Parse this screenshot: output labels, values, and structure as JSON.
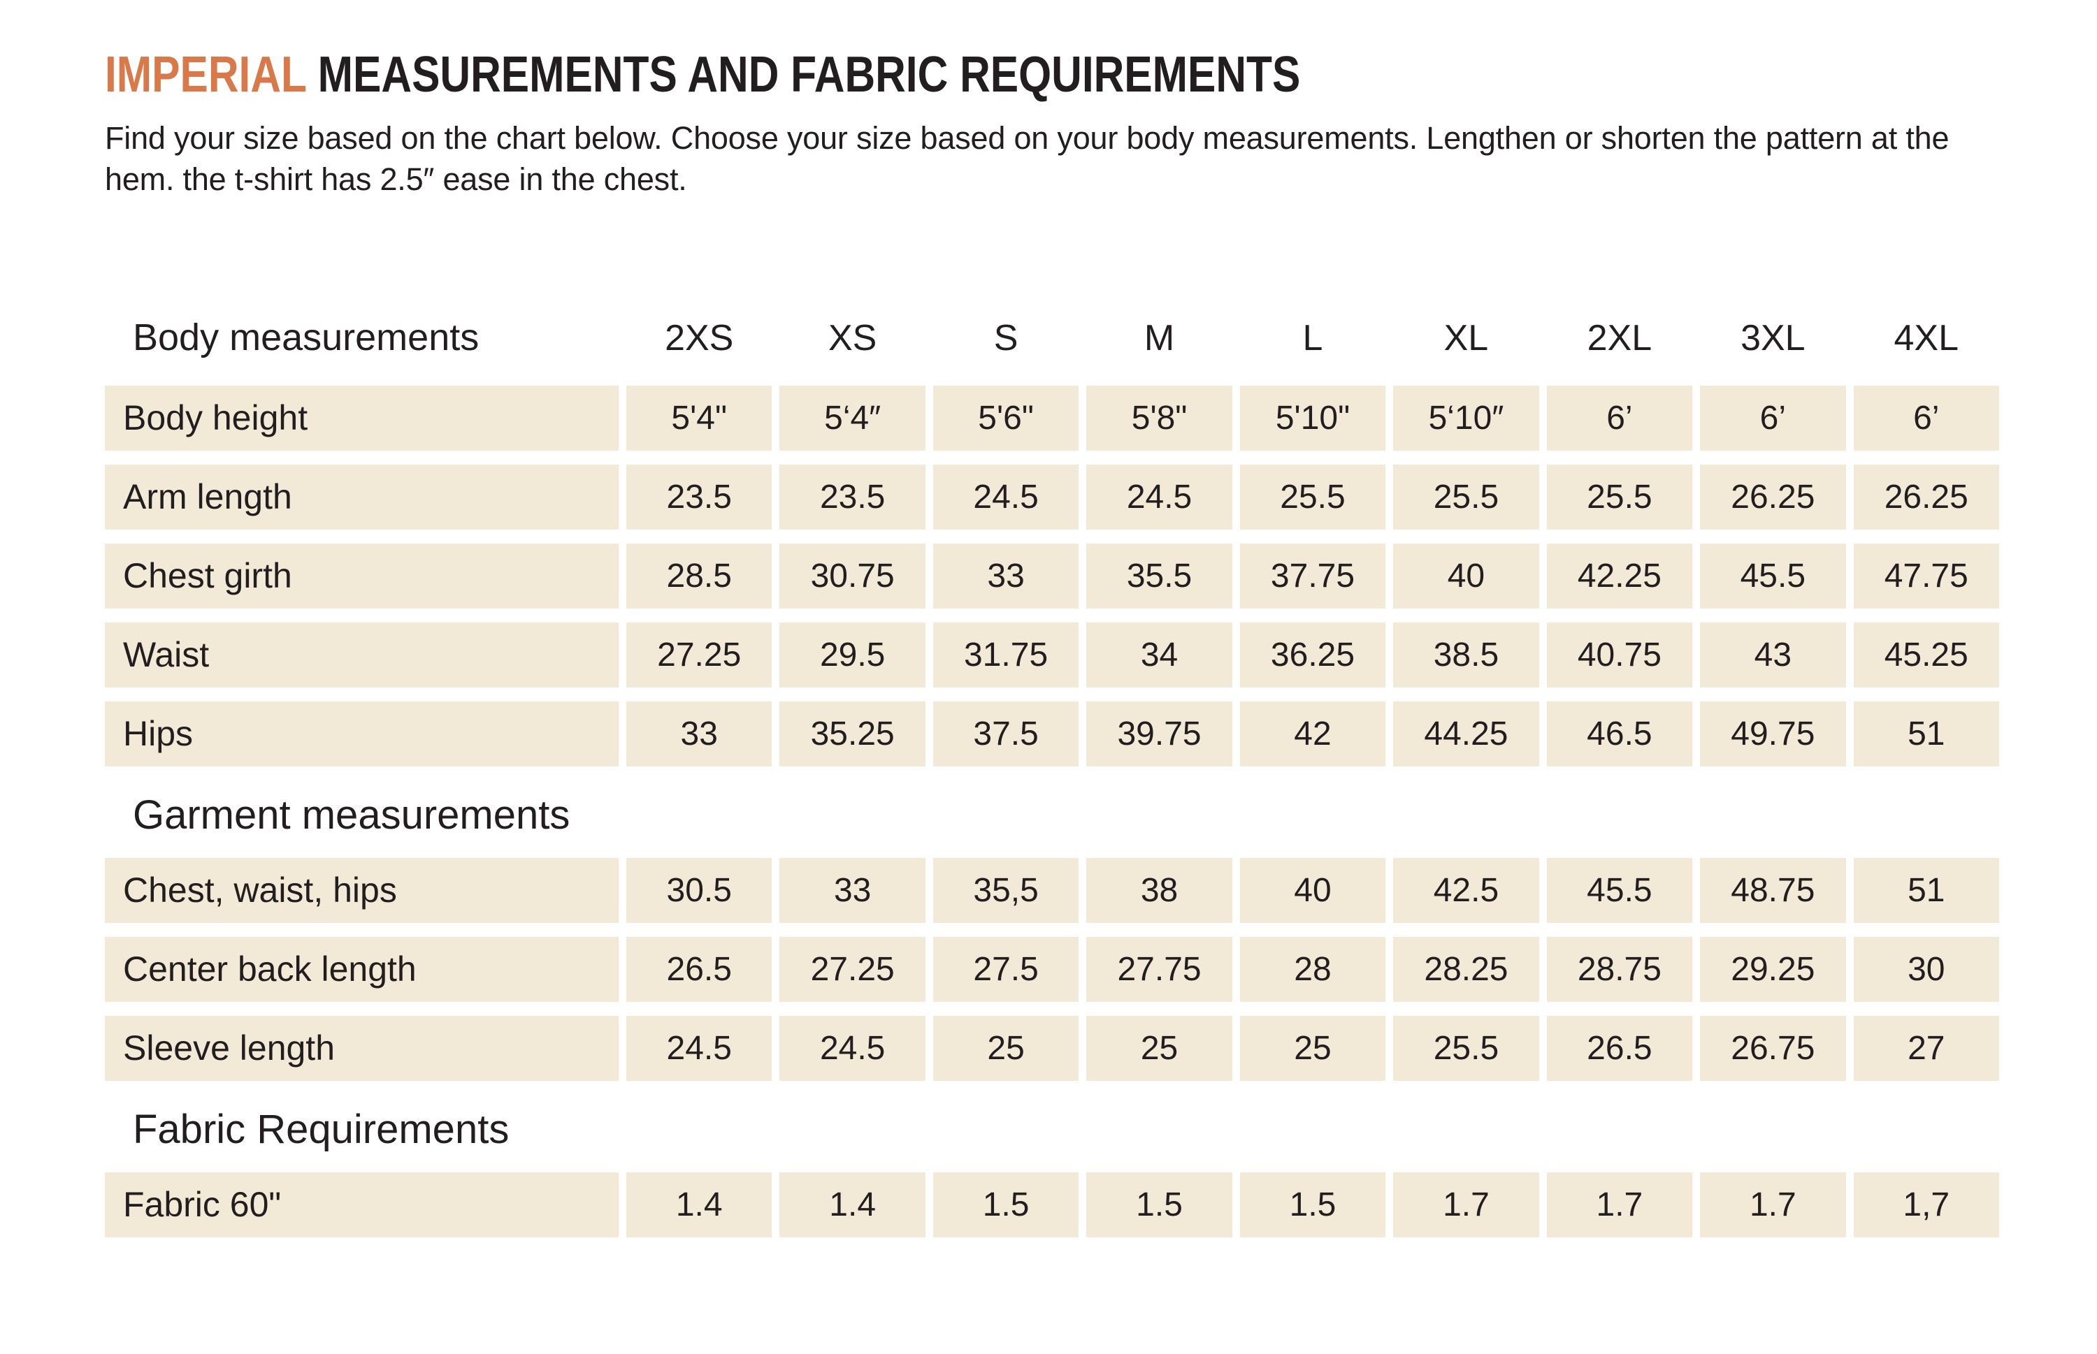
{
  "page": {
    "title": {
      "highlight": "IMPERIAL",
      "rest": " MEASUREMENTS AND FABRIC REQUIREMENTS"
    },
    "subtitle": "Find your size based on the chart below. Choose your size based on your body measurements. Lengthen or shorten the pattern at the hem. the t-shirt has 2.5″ ease in the chest."
  },
  "colors": {
    "accent_orange": "#d9794a",
    "cell_beige": "#f2e9d6",
    "text_dark": "#221e1f"
  },
  "table": {
    "sizes": [
      "2XS",
      "XS",
      "S",
      "M",
      "L",
      "XL",
      "2XL",
      "3XL",
      "4XL"
    ],
    "sections": [
      {
        "heading": "Body measurements",
        "rows": [
          {
            "label": "Body height",
            "values": [
              "5'4\"",
              "5‘4″",
              "5'6\"",
              "5'8\"",
              "5'10\"",
              "5‘10″",
              "6’",
              "6’",
              "6’"
            ]
          },
          {
            "label": "Arm length",
            "values": [
              "23.5",
              "23.5",
              "24.5",
              "24.5",
              "25.5",
              "25.5",
              "25.5",
              "26.25",
              "26.25"
            ]
          },
          {
            "label": "Chest girth",
            "values": [
              "28.5",
              "30.75",
              "33",
              "35.5",
              "37.75",
              "40",
              "42.25",
              "45.5",
              "47.75"
            ]
          },
          {
            "label": "Waist",
            "values": [
              "27.25",
              "29.5",
              "31.75",
              "34",
              "36.25",
              "38.5",
              "40.75",
              "43",
              "45.25"
            ]
          },
          {
            "label": "Hips",
            "values": [
              "33",
              "35.25",
              "37.5",
              "39.75",
              "42",
              "44.25",
              "46.5",
              "49.75",
              "51"
            ]
          }
        ]
      },
      {
        "heading": "Garment measurements",
        "rows": [
          {
            "label": "Chest, waist, hips",
            "values": [
              "30.5",
              "33",
              "35,5",
              "38",
              "40",
              "42.5",
              "45.5",
              "48.75",
              "51"
            ]
          },
          {
            "label": "Center back length",
            "values": [
              "26.5",
              "27.25",
              "27.5",
              "27.75",
              "28",
              "28.25",
              "28.75",
              "29.25",
              "30"
            ]
          },
          {
            "label": "Sleeve length",
            "values": [
              "24.5",
              "24.5",
              "25",
              "25",
              "25",
              "25.5",
              "26.5",
              "26.75",
              "27"
            ]
          }
        ]
      },
      {
        "heading": "Fabric Requirements",
        "rows": [
          {
            "label": "Fabric 60\"",
            "values": [
              "1.4",
              "1.4",
              "1.5",
              "1.5",
              "1.5",
              "1.7",
              "1.7",
              "1.7",
              "1,7"
            ]
          }
        ]
      }
    ]
  }
}
